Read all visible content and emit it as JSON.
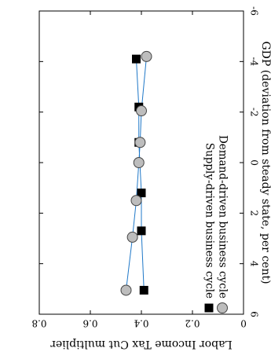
{
  "chart_data": {
    "type": "line",
    "orientation": "rotated-90-clockwise",
    "xlabel": "GDP (deviation from steady state, per cent)",
    "ylabel": "Labor Income Tax Cut multiplier",
    "xlim": [
      -6,
      6
    ],
    "ylim": [
      0,
      0.8
    ],
    "x_ticks": [
      "-6",
      "-4",
      "-2",
      "0",
      "2",
      "4",
      "6"
    ],
    "y_ticks": [
      "0.8",
      "0.6",
      "0.4",
      "0.2",
      "0"
    ],
    "grid": false,
    "legend_position": "bottom-right",
    "series": [
      {
        "name": "Supply-driven business cycle",
        "marker": "square",
        "marker_fill": "#000000",
        "line_color": "#1f78c8",
        "x": [
          -4.1,
          -2.2,
          -0.8,
          1.2,
          2.7,
          5.05
        ],
        "y": [
          0.42,
          0.41,
          0.41,
          0.4,
          0.4,
          0.39
        ]
      },
      {
        "name": "Demand-driven business cycle",
        "marker": "circle",
        "marker_fill": "#bdbdbd",
        "line_color": "#1f78c8",
        "x": [
          -4.2,
          -2.05,
          -0.8,
          0.0,
          1.5,
          2.95,
          5.05
        ],
        "y": [
          0.38,
          0.4,
          0.405,
          0.41,
          0.42,
          0.435,
          0.46
        ]
      }
    ]
  }
}
